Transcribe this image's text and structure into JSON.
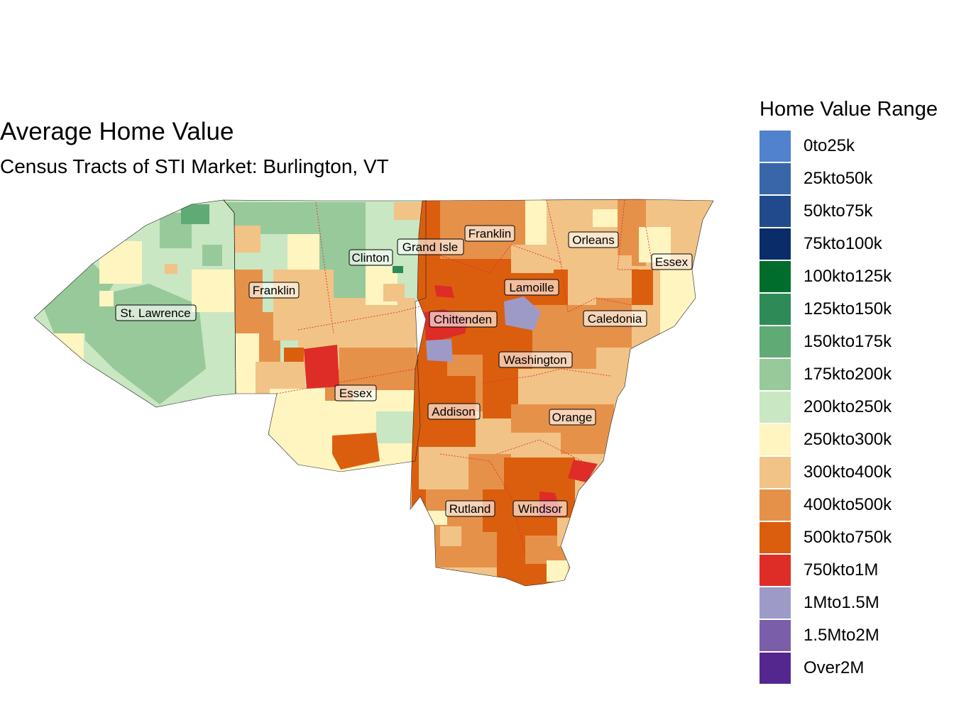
{
  "title": "Average Home Value",
  "subtitle": "Census Tracts of STI Market: Burlington, VT",
  "legend": {
    "title": "Home Value Range",
    "items": [
      {
        "label": "0to25k",
        "color": "#5082CD"
      },
      {
        "label": "25kto50k",
        "color": "#3866A8"
      },
      {
        "label": "50kto75k",
        "color": "#204A8C"
      },
      {
        "label": "75kto100k",
        "color": "#0A2C68"
      },
      {
        "label": "100kto125k",
        "color": "#006D2C"
      },
      {
        "label": "125kto150k",
        "color": "#2E8B57"
      },
      {
        "label": "150kto175k",
        "color": "#60AA76"
      },
      {
        "label": "175kto200k",
        "color": "#98C99A"
      },
      {
        "label": "200kto250k",
        "color": "#C9E7C3"
      },
      {
        "label": "250kto300k",
        "color": "#FFF5C0"
      },
      {
        "label": "300kto400k",
        "color": "#F2C386"
      },
      {
        "label": "400kto500k",
        "color": "#E6914A"
      },
      {
        "label": "500kto750k",
        "color": "#DB5E0E"
      },
      {
        "label": "750kto1M",
        "color": "#DD2D26"
      },
      {
        "label": "1Mto1.5M",
        "color": "#9E9AC8"
      },
      {
        "label": "1.5Mto2M",
        "color": "#7B5EAA"
      },
      {
        "label": "Over2M",
        "color": "#54278F"
      }
    ]
  },
  "county_labels": [
    "St. Lawrence",
    "Franklin",
    "Clinton",
    "Grand Isle",
    "Franklin",
    "Orleans",
    "Essex",
    "Lamoille",
    "Chittenden",
    "Caledonia",
    "Washington",
    "Essex",
    "Addison",
    "Orange",
    "Rutland",
    "Windsor"
  ]
}
